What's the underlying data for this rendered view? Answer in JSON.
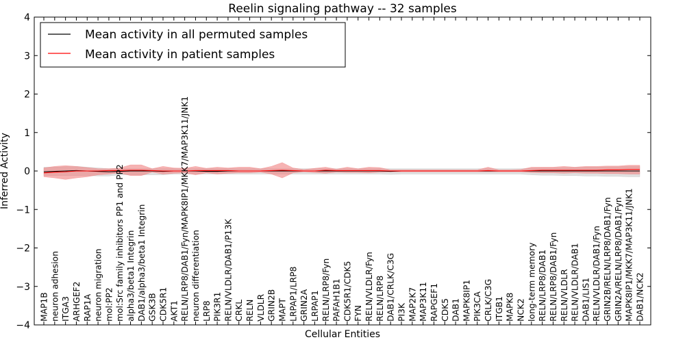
{
  "chart_data": {
    "type": "line",
    "title": "Reelin signaling pathway -- 32 samples",
    "xlabel": "Cellular Entities",
    "ylabel": "Inferred Activity",
    "ylim": [
      -4,
      4
    ],
    "yticks": [
      "4",
      "3",
      "2",
      "1",
      "0",
      "−1",
      "−2",
      "−3",
      "−4"
    ],
    "ytick_values": [
      4,
      3,
      2,
      1,
      0,
      -1,
      -2,
      -3,
      -4
    ],
    "grid": false,
    "legend_location": "top-left",
    "categories": [
      "MAP1B",
      "neuron adhesion",
      "ITGA3",
      "ARHGEF2",
      "RAP1A",
      "neuron migration",
      "mol:PP2",
      "mol:Src family inhibitors PP1 and PP2",
      "alpha3/beta1 Integrin",
      "DAB1/alpha3/beta1 Integrin",
      "GSK3B",
      "CDK5R1",
      "AKT1",
      "RELN/LRP8/DAB1/Fyn/MAPK8IP1/MKK7/MAP3K11/JNK1",
      "neuron differentiation",
      "LRP8",
      "PIK3R1",
      "RELN/VLDLR/DAB1/P13K",
      "CRKL",
      "RELN",
      "VLDLR",
      "GRIN2B",
      "MAPT",
      "LRPAP1/LRP8",
      "GRIN2A",
      "LRPAP1",
      "RELN/LRP8/Fyn",
      "PAFAH1B1",
      "CDK5R1/CDK5",
      "FYN",
      "RELN/VLDLR/Fyn",
      "RELN/LRP8",
      "DAB1/CRLK/C3G",
      "PI3K",
      "MAP2K7",
      "MAP3K11",
      "RAPGEF1",
      "CDK5",
      "DAB1",
      "MAPK8IP1",
      "PIK3CA",
      "CRLK/C3G",
      "ITGB1",
      "MAPK8",
      "NCK2",
      "long-term memory",
      "RELN/LRP8/DAB1",
      "RELN/LRP8/DAB1/Fyn",
      "RELN/VLDLR",
      "RELN/VLDLR/DAB1",
      "DAB1/LIS1",
      "RELN/VLDLR/DAB1/Fyn",
      "GRIN2B/RELN/LRP8/DAB1/Fyn",
      "GRIN2A/RELN/LRP8/DAB1/Fyn",
      "MAPK8IP1/MKK7/MAP3K11/JNK1",
      "DAB1/NCK2"
    ],
    "series": [
      {
        "name": "Mean activity in all permuted samples",
        "color": "#000000",
        "band_color": "#bbbbbb",
        "values": [
          -0.02,
          -0.01,
          0.0,
          0.01,
          0.0,
          -0.01,
          -0.02,
          -0.01,
          0.0,
          0.0,
          0.0,
          -0.01,
          0.0,
          0.0,
          0.0,
          -0.01,
          -0.01,
          0.0,
          0.0,
          0.0,
          0.0,
          0.0,
          0.0,
          0.0,
          0.0,
          0.0,
          0.0,
          0.0,
          0.0,
          0.0,
          0.0,
          0.0,
          -0.01,
          0.0,
          0.0,
          0.0,
          0.0,
          0.0,
          0.0,
          0.0,
          0.0,
          0.0,
          0.0,
          0.0,
          0.0,
          0.0,
          0.0,
          0.0,
          0.0,
          0.0,
          0.0,
          0.0,
          0.0,
          0.0,
          0.0,
          0.0
        ],
        "band_lower": [
          -0.12,
          -0.12,
          -0.12,
          -0.12,
          -0.12,
          -0.13,
          -0.13,
          -0.1,
          -0.1,
          -0.1,
          -0.1,
          -0.1,
          -0.08,
          -0.08,
          -0.08,
          -0.08,
          -0.08,
          -0.08,
          -0.08,
          -0.08,
          -0.08,
          -0.08,
          -0.08,
          -0.08,
          -0.08,
          -0.08,
          -0.08,
          -0.08,
          -0.08,
          -0.08,
          -0.08,
          -0.08,
          -0.09,
          -0.08,
          -0.08,
          -0.08,
          -0.08,
          -0.08,
          -0.08,
          -0.08,
          -0.08,
          -0.08,
          -0.08,
          -0.08,
          -0.08,
          -0.1,
          -0.11,
          -0.11,
          -0.12,
          -0.12,
          -0.13,
          -0.13,
          -0.14,
          -0.14,
          -0.15,
          -0.15
        ],
        "band_upper": [
          0.1,
          0.1,
          0.11,
          0.12,
          0.1,
          0.08,
          0.06,
          0.06,
          0.06,
          0.06,
          0.06,
          0.06,
          0.06,
          0.06,
          0.06,
          0.06,
          0.06,
          0.06,
          0.06,
          0.06,
          0.06,
          0.06,
          0.06,
          0.06,
          0.06,
          0.06,
          0.06,
          0.06,
          0.06,
          0.06,
          0.06,
          0.06,
          0.06,
          0.06,
          0.06,
          0.06,
          0.06,
          0.06,
          0.06,
          0.06,
          0.06,
          0.06,
          0.06,
          0.06,
          0.06,
          0.07,
          0.08,
          0.08,
          0.09,
          0.09,
          0.1,
          0.1,
          0.11,
          0.11,
          0.12,
          0.12
        ]
      },
      {
        "name": "Mean activity in patient samples",
        "color": "#ff0000",
        "band_color": "#f08080",
        "values": [
          -0.05,
          -0.03,
          -0.02,
          0.0,
          0.0,
          0.0,
          0.01,
          0.01,
          0.02,
          0.02,
          0.01,
          0.0,
          0.0,
          0.0,
          0.01,
          0.01,
          0.01,
          0.01,
          0.0,
          0.0,
          0.0,
          0.01,
          0.02,
          0.01,
          0.0,
          0.0,
          0.02,
          0.01,
          0.01,
          0.01,
          0.01,
          0.01,
          0.0,
          0.0,
          0.0,
          0.0,
          0.0,
          0.0,
          0.0,
          0.0,
          0.0,
          0.01,
          0.0,
          0.0,
          0.0,
          0.01,
          0.02,
          0.02,
          0.02,
          0.02,
          0.02,
          0.02,
          0.03,
          0.03,
          0.04,
          0.04
        ],
        "band_lower": [
          -0.15,
          -0.18,
          -0.22,
          -0.18,
          -0.15,
          -0.1,
          -0.08,
          -0.05,
          -0.12,
          -0.12,
          -0.03,
          -0.08,
          -0.06,
          -0.05,
          -0.1,
          -0.05,
          -0.08,
          -0.06,
          -0.05,
          -0.05,
          -0.03,
          -0.08,
          -0.18,
          -0.05,
          -0.02,
          -0.04,
          -0.06,
          -0.03,
          -0.04,
          -0.04,
          -0.05,
          -0.03,
          -0.02,
          -0.02,
          -0.02,
          -0.02,
          -0.02,
          -0.02,
          -0.02,
          -0.02,
          -0.02,
          -0.02,
          -0.02,
          -0.02,
          -0.02,
          -0.04,
          -0.05,
          -0.05,
          -0.06,
          -0.05,
          -0.06,
          -0.06,
          -0.07,
          -0.07,
          -0.08,
          -0.08
        ],
        "band_upper": [
          0.08,
          0.12,
          0.14,
          0.12,
          0.09,
          0.06,
          0.06,
          0.08,
          0.16,
          0.16,
          0.06,
          0.12,
          0.08,
          0.07,
          0.12,
          0.07,
          0.1,
          0.08,
          0.1,
          0.1,
          0.06,
          0.12,
          0.22,
          0.08,
          0.04,
          0.07,
          0.1,
          0.05,
          0.1,
          0.06,
          0.1,
          0.09,
          0.03,
          0.03,
          0.03,
          0.03,
          0.03,
          0.03,
          0.03,
          0.03,
          0.03,
          0.1,
          0.03,
          0.03,
          0.04,
          0.1,
          0.1,
          0.1,
          0.12,
          0.1,
          0.12,
          0.12,
          0.13,
          0.13,
          0.15,
          0.15
        ]
      }
    ]
  }
}
